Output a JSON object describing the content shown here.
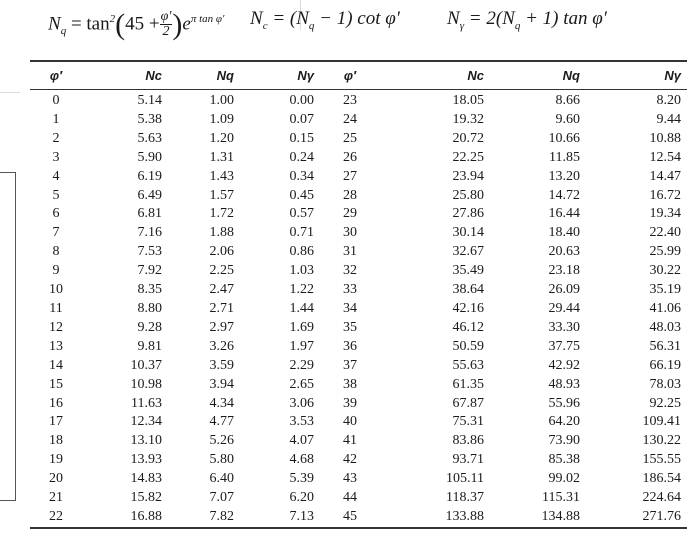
{
  "formulas": {
    "nq": {
      "lhs": "N",
      "lhs_sub": "q",
      "eq": " = tan",
      "sq": "2",
      "open": "(",
      "a": "45 +",
      "num": "φ′",
      "den": "2",
      "close": ")",
      "e": "e",
      "exp": "π tan φ′"
    },
    "nc": {
      "text": "N",
      "sub": "c",
      "rest1": " = (N",
      "sub2": "q",
      "rest2": " − 1) cot φ′"
    },
    "ng": {
      "text": "N",
      "sub": "γ",
      "rest1": " = 2(N",
      "sub2": "q",
      "rest2": " + 1) tan φ′"
    }
  },
  "table": {
    "headers": [
      "φ′",
      "Nc",
      "Nq",
      "Nγ",
      "φ′",
      "Nc",
      "Nq",
      "Nγ"
    ],
    "rows": [
      [
        "0",
        "5.14",
        "1.00",
        "0.00",
        "23",
        "18.05",
        "8.66",
        "8.20"
      ],
      [
        "1",
        "5.38",
        "1.09",
        "0.07",
        "24",
        "19.32",
        "9.60",
        "9.44"
      ],
      [
        "2",
        "5.63",
        "1.20",
        "0.15",
        "25",
        "20.72",
        "10.66",
        "10.88"
      ],
      [
        "3",
        "5.90",
        "1.31",
        "0.24",
        "26",
        "22.25",
        "11.85",
        "12.54"
      ],
      [
        "4",
        "6.19",
        "1.43",
        "0.34",
        "27",
        "23.94",
        "13.20",
        "14.47"
      ],
      [
        "5",
        "6.49",
        "1.57",
        "0.45",
        "28",
        "25.80",
        "14.72",
        "16.72"
      ],
      [
        "6",
        "6.81",
        "1.72",
        "0.57",
        "29",
        "27.86",
        "16.44",
        "19.34"
      ],
      [
        "7",
        "7.16",
        "1.88",
        "0.71",
        "30",
        "30.14",
        "18.40",
        "22.40"
      ],
      [
        "8",
        "7.53",
        "2.06",
        "0.86",
        "31",
        "32.67",
        "20.63",
        "25.99"
      ],
      [
        "9",
        "7.92",
        "2.25",
        "1.03",
        "32",
        "35.49",
        "23.18",
        "30.22"
      ],
      [
        "10",
        "8.35",
        "2.47",
        "1.22",
        "33",
        "38.64",
        "26.09",
        "35.19"
      ],
      [
        "11",
        "8.80",
        "2.71",
        "1.44",
        "34",
        "42.16",
        "29.44",
        "41.06"
      ],
      [
        "12",
        "9.28",
        "2.97",
        "1.69",
        "35",
        "46.12",
        "33.30",
        "48.03"
      ],
      [
        "13",
        "9.81",
        "3.26",
        "1.97",
        "36",
        "50.59",
        "37.75",
        "56.31"
      ],
      [
        "14",
        "10.37",
        "3.59",
        "2.29",
        "37",
        "55.63",
        "42.92",
        "66.19"
      ],
      [
        "15",
        "10.98",
        "3.94",
        "2.65",
        "38",
        "61.35",
        "48.93",
        "78.03"
      ],
      [
        "16",
        "11.63",
        "4.34",
        "3.06",
        "39",
        "67.87",
        "55.96",
        "92.25"
      ],
      [
        "17",
        "12.34",
        "4.77",
        "3.53",
        "40",
        "75.31",
        "64.20",
        "109.41"
      ],
      [
        "18",
        "13.10",
        "5.26",
        "4.07",
        "41",
        "83.86",
        "73.90",
        "130.22"
      ],
      [
        "19",
        "13.93",
        "5.80",
        "4.68",
        "42",
        "93.71",
        "85.38",
        "155.55"
      ],
      [
        "20",
        "14.83",
        "6.40",
        "5.39",
        "43",
        "105.11",
        "99.02",
        "186.54"
      ],
      [
        "21",
        "15.82",
        "7.07",
        "6.20",
        "44",
        "118.37",
        "115.31",
        "224.64"
      ],
      [
        "22",
        "16.88",
        "7.82",
        "7.13",
        "45",
        "133.88",
        "134.88",
        "271.76"
      ]
    ]
  }
}
